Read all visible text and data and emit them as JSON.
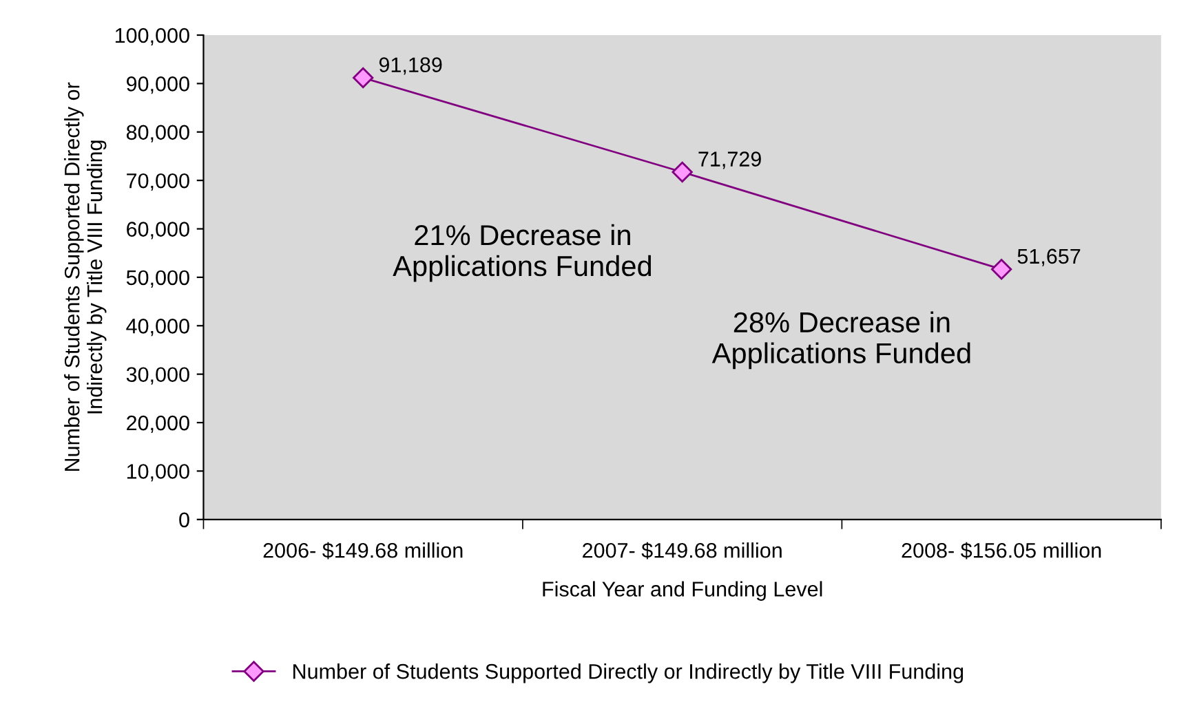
{
  "chart_data": {
    "type": "line",
    "xlabel": "Fiscal Year and Funding Level",
    "ylabel": "Number of Students Supported Directly or\nIndirectly by Title VIII Funding",
    "categories": [
      "2006- $149.68 million",
      "2007- $149.68 million",
      "2008- $156.05 million"
    ],
    "series": [
      {
        "name": "Number of Students Supported Directly or Indirectly by Title VIII Funding",
        "color": "#800080",
        "values": [
          91189,
          71729,
          51657
        ]
      }
    ],
    "ylim": [
      0,
      100000
    ],
    "yticks": [
      {
        "value": 0,
        "label": "0"
      },
      {
        "value": 10000,
        "label": "10,000"
      },
      {
        "value": 20000,
        "label": "20,000"
      },
      {
        "value": 30000,
        "label": "30,000"
      },
      {
        "value": 40000,
        "label": "40,000"
      },
      {
        "value": 50000,
        "label": "50,000"
      },
      {
        "value": 60000,
        "label": "60,000"
      },
      {
        "value": 70000,
        "label": "70,000"
      },
      {
        "value": 80000,
        "label": "80,000"
      },
      {
        "value": 90000,
        "label": "90,000"
      },
      {
        "value": 100000,
        "label": "100,000"
      }
    ],
    "annotations": [
      "21% Decrease in\nApplications Funded",
      "28% Decrease in\nApplications Funded"
    ],
    "value_labels": [
      "91,189",
      "71,729",
      "51,657"
    ],
    "marker": "diamond",
    "legend": "bottom",
    "grid": false
  }
}
